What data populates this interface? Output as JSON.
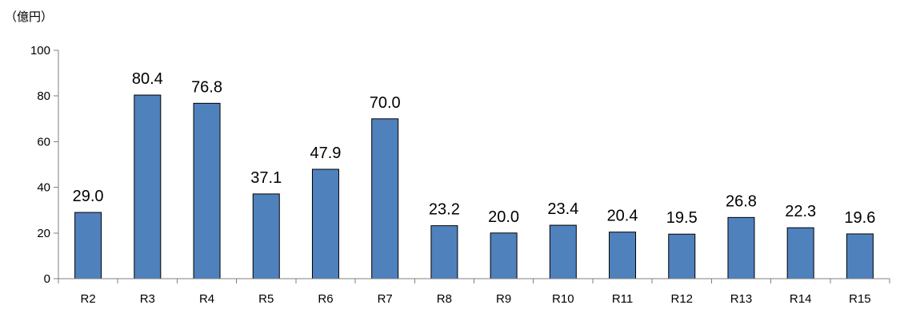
{
  "chart_data": {
    "type": "bar",
    "unit_label": "（億円）",
    "categories": [
      "R2",
      "R3",
      "R4",
      "R5",
      "R6",
      "R7",
      "R8",
      "R9",
      "R10",
      "R11",
      "R12",
      "R13",
      "R14",
      "R15"
    ],
    "values": [
      29.0,
      80.4,
      76.8,
      37.1,
      47.9,
      70.0,
      23.2,
      20.0,
      23.4,
      20.4,
      19.5,
      26.8,
      22.3,
      19.6
    ],
    "value_labels": [
      "29.0",
      "80.4",
      "76.8",
      "37.1",
      "47.9",
      "70.0",
      "23.2",
      "20.0",
      "23.4",
      "20.4",
      "19.5",
      "26.8",
      "22.3",
      "19.6"
    ],
    "yticks": [
      0,
      20,
      40,
      60,
      80,
      100
    ],
    "ylim": [
      0,
      100
    ],
    "grid": false,
    "legend": "none",
    "colors": {
      "bar_fill": "#4f81bd",
      "bar_stroke": "#000000",
      "axis": "#7f7f7f"
    }
  }
}
